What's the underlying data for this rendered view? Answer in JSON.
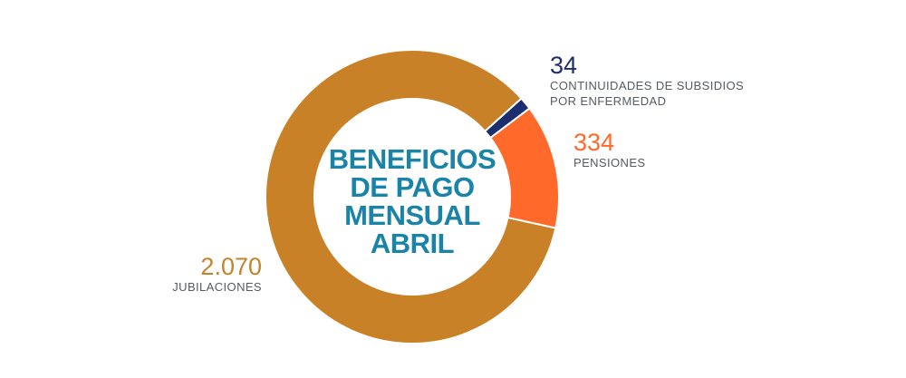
{
  "chart_data": {
    "type": "pie",
    "donut": true,
    "title_lines": [
      "BENEFICIOS",
      "DE PAGO",
      "MENSUAL",
      "ABRIL"
    ],
    "slices": [
      {
        "label": "CONTINUIDADES DE SUBSIDIOS POR ENFERMEDAD",
        "label_lines": [
          "CONTINUIDADES DE SUBSIDIOS",
          "POR ENFERMEDAD"
        ],
        "value": 34,
        "value_text": "34",
        "color": "#1b2f6e"
      },
      {
        "label": "PENSIONES",
        "label_lines": [
          "PENSIONES"
        ],
        "value": 334,
        "value_text": "334",
        "color": "#ff6a2b"
      },
      {
        "label": "JUBILACIONES",
        "label_lines": [
          "JUBILACIONES"
        ],
        "value": 2070,
        "value_text": "2.070",
        "color": "#c98128"
      }
    ],
    "start_angle_deg": 48,
    "direction": "clockwise",
    "slice_separator_color": "#ffffff",
    "legend": "callouts"
  }
}
